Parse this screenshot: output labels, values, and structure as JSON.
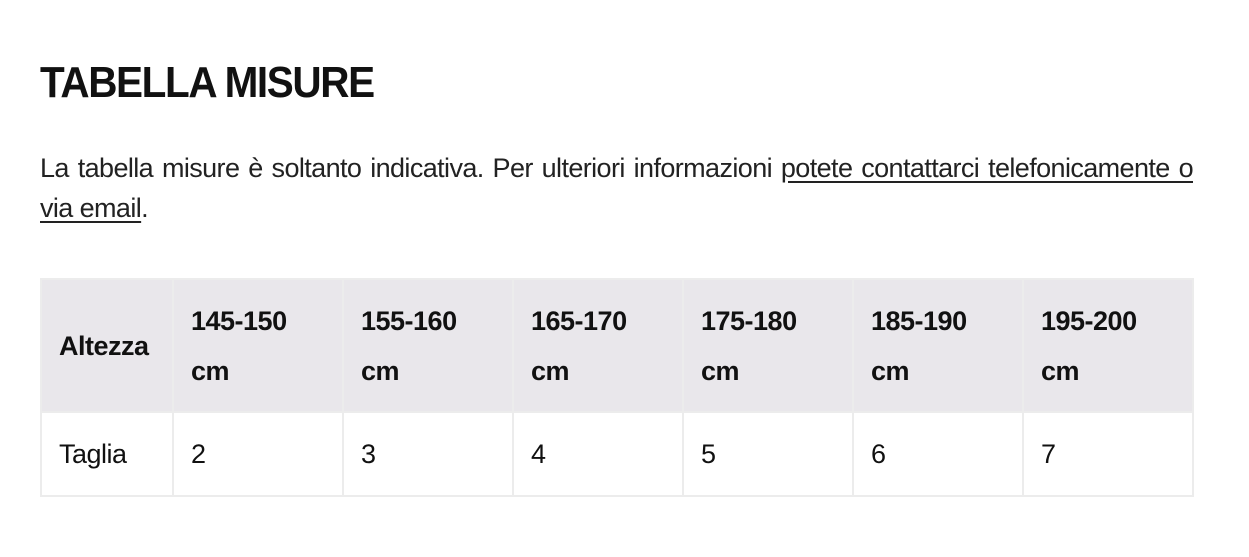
{
  "title": "TABELLA MISURE",
  "intro": {
    "text": "La tabella misure è soltanto indicativa. Per ulteriori informazioni ",
    "link": "potete contattarci telefonicamente o via email",
    "end": "."
  },
  "table": {
    "header_label": "Altezza",
    "heights": [
      "145-150 cm",
      "155-160 cm",
      "165-170 cm",
      "175-180 cm",
      "185-190 cm",
      "195-200 cm"
    ],
    "row_label": "Taglia",
    "sizes": [
      "2",
      "3",
      "4",
      "5",
      "6",
      "7"
    ]
  }
}
